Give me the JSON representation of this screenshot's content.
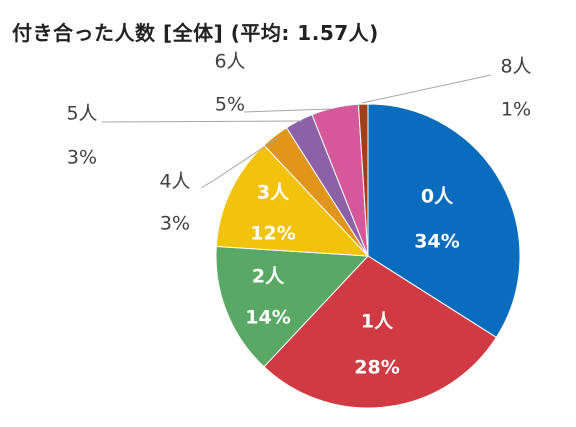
{
  "chart_data": {
    "type": "pie",
    "title": "付き合った人数 [全体] (平均: 1.57人)",
    "categories": [
      "0人",
      "1人",
      "2人",
      "3人",
      "4人",
      "5人",
      "6人",
      "8人"
    ],
    "values": [
      34,
      28,
      14,
      12,
      3,
      3,
      5,
      1
    ],
    "labels": [
      "34%",
      "28%",
      "14%",
      "12%",
      "3%",
      "3%",
      "5%",
      "1%"
    ],
    "colors": [
      "#0a6cbd",
      "#cf3a43",
      "#5aa865",
      "#f2c20c",
      "#e0961a",
      "#8c61a8",
      "#d4589a",
      "#a0401a"
    ],
    "start_angle_deg": 0,
    "direction": "clockwise",
    "label_placement": [
      "inside",
      "inside",
      "inside",
      "inside",
      "outside",
      "outside",
      "outside",
      "outside"
    ]
  }
}
